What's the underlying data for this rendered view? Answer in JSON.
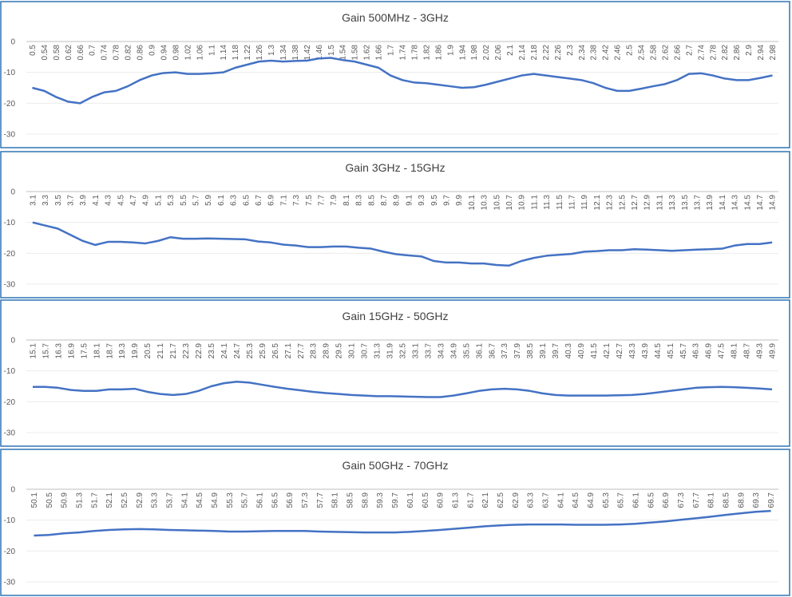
{
  "chart_data": [
    {
      "type": "line",
      "title": "Gain 500MHz - 3GHz",
      "categories": [
        "0.5",
        "0.54",
        "0.58",
        "0.62",
        "0.66",
        "0.7",
        "0.74",
        "0.78",
        "0.82",
        "0.86",
        "0.9",
        "0.94",
        "0.98",
        "1.02",
        "1.06",
        "1.1",
        "1.14",
        "1.18",
        "1.22",
        "1.26",
        "1.3",
        "1.34",
        "1.38",
        "1.42",
        "1.46",
        "1.5",
        "1.54",
        "1.58",
        "1.62",
        "1.66",
        "1.7",
        "1.74",
        "1.78",
        "1.82",
        "1.86",
        "1.9",
        "1.94",
        "1.98",
        "2.02",
        "2.06",
        "2.1",
        "2.14",
        "2.18",
        "2.22",
        "2.26",
        "2.3",
        "2.34",
        "2.38",
        "2.42",
        "2.46",
        "2.5",
        "2.54",
        "2.58",
        "2.62",
        "2.66",
        "2.7",
        "2.74",
        "2.78",
        "2.82",
        "2.86",
        "2.9",
        "2.94",
        "2.98"
      ],
      "values": [
        -15,
        -16,
        -18,
        -19.5,
        -20,
        -18,
        -16.5,
        -16,
        -14.5,
        -12.5,
        -11,
        -10.2,
        -10,
        -10.5,
        -10.5,
        -10.3,
        -10,
        -8.5,
        -7.5,
        -6.5,
        -6.2,
        -6.5,
        -6.3,
        -6.2,
        -5.5,
        -5.3,
        -6,
        -6.5,
        -7.5,
        -8.5,
        -11,
        -12.5,
        -13.3,
        -13.5,
        -14,
        -14.5,
        -15,
        -14.8,
        -14,
        -13,
        -12,
        -11,
        -10.5,
        -11,
        -11.5,
        -12,
        -12.5,
        -13.5,
        -15,
        -16,
        -16,
        -15.3,
        -14.5,
        -13.8,
        -12.5,
        -10.5,
        -10.3,
        -11,
        -12,
        -12.5,
        -12.5,
        -11.8,
        -11
      ],
      "color": "#4472c4",
      "ylim": [
        -30,
        0
      ],
      "yticks": [
        0,
        -10,
        -20,
        -30
      ],
      "grid": true
    },
    {
      "type": "line",
      "title": "Gain 3GHz - 15GHz",
      "categories": [
        "3.1",
        "3.3",
        "3.5",
        "3.7",
        "3.9",
        "4.1",
        "4.3",
        "4.5",
        "4.7",
        "4.9",
        "5.1",
        "5.3",
        "5.5",
        "5.7",
        "5.9",
        "6.1",
        "6.3",
        "6.5",
        "6.7",
        "6.9",
        "7.1",
        "7.3",
        "7.5",
        "7.7",
        "7.9",
        "8.1",
        "8.3",
        "8.5",
        "8.7",
        "8.9",
        "9.1",
        "9.3",
        "9.5",
        "9.7",
        "9.9",
        "10.1",
        "10.3",
        "10.5",
        "10.7",
        "10.9",
        "11.1",
        "11.3",
        "11.5",
        "11.7",
        "11.9",
        "12.1",
        "12.3",
        "12.5",
        "12.7",
        "12.9",
        "13.1",
        "13.3",
        "13.5",
        "13.7",
        "13.9",
        "14.1",
        "14.3",
        "14.5",
        "14.7",
        "14.9"
      ],
      "values": [
        -10,
        -11,
        -12,
        -14,
        -16,
        -17.3,
        -16.3,
        -16.3,
        -16.5,
        -16.8,
        -16,
        -14.8,
        -15.3,
        -15.3,
        -15.2,
        -15.3,
        -15.4,
        -15.5,
        -16.2,
        -16.5,
        -17.2,
        -17.5,
        -18,
        -18,
        -17.8,
        -17.8,
        -18.2,
        -18.5,
        -19.5,
        -20.3,
        -20.7,
        -21,
        -22.5,
        -23,
        -23,
        -23.3,
        -23.3,
        -23.8,
        -24,
        -22.5,
        -21.5,
        -20.8,
        -20.5,
        -20.2,
        -19.5,
        -19.3,
        -19,
        -19,
        -18.7,
        -18.8,
        -19,
        -19.2,
        -19,
        -18.8,
        -18.7,
        -18.5,
        -17.5,
        -17,
        -17,
        -16.5
      ],
      "color": "#4472c4",
      "ylim": [
        -30,
        0
      ],
      "yticks": [
        0,
        -10,
        -20,
        -30
      ],
      "grid": true
    },
    {
      "type": "line",
      "title": "Gain 15GHz - 50GHz",
      "categories": [
        "15.1",
        "15.7",
        "16.3",
        "16.9",
        "17.5",
        "18.1",
        "18.7",
        "19.3",
        "19.9",
        "20.5",
        "21.1",
        "21.7",
        "22.3",
        "22.9",
        "23.5",
        "24.1",
        "24.7",
        "25.3",
        "25.9",
        "26.5",
        "27.1",
        "27.7",
        "28.3",
        "28.9",
        "29.5",
        "30.1",
        "30.7",
        "31.3",
        "31.9",
        "32.5",
        "33.1",
        "33.7",
        "34.3",
        "34.9",
        "35.5",
        "36.1",
        "36.7",
        "37.3",
        "37.9",
        "38.5",
        "39.1",
        "39.7",
        "40.3",
        "40.9",
        "41.5",
        "42.1",
        "42.7",
        "43.3",
        "43.9",
        "44.5",
        "45.1",
        "45.7",
        "46.3",
        "46.9",
        "47.5",
        "48.1",
        "48.7",
        "49.3",
        "49.9"
      ],
      "values": [
        -15.2,
        -15.2,
        -15.5,
        -16.2,
        -16.5,
        -16.5,
        -16,
        -16,
        -15.8,
        -16.8,
        -17.5,
        -17.8,
        -17.5,
        -16.5,
        -15,
        -14,
        -13.5,
        -13.8,
        -14.5,
        -15.2,
        -15.8,
        -16.3,
        -16.8,
        -17.2,
        -17.5,
        -17.8,
        -18,
        -18.2,
        -18.2,
        -18.3,
        -18.4,
        -18.5,
        -18.5,
        -18,
        -17.3,
        -16.5,
        -16,
        -15.8,
        -16,
        -16.5,
        -17.3,
        -17.8,
        -18,
        -18,
        -18,
        -18,
        -17.9,
        -17.8,
        -17.5,
        -17,
        -16.5,
        -16,
        -15.5,
        -15.3,
        -15.2,
        -15.3,
        -15.5,
        -15.7,
        -16
      ],
      "color": "#4472c4",
      "ylim": [
        -30,
        0
      ],
      "yticks": [
        0,
        -10,
        -20,
        -30
      ],
      "grid": true
    },
    {
      "type": "line",
      "title": "Gain 50GHz - 70GHz",
      "categories": [
        "50.1",
        "50.5",
        "50.9",
        "51.3",
        "51.7",
        "52.1",
        "52.5",
        "52.9",
        "53.3",
        "53.7",
        "54.1",
        "54.5",
        "54.9",
        "55.3",
        "55.7",
        "56.1",
        "56.5",
        "56.9",
        "57.3",
        "57.7",
        "58.1",
        "58.5",
        "58.9",
        "59.3",
        "59.7",
        "60.1",
        "60.5",
        "60.9",
        "61.3",
        "61.7",
        "62.1",
        "62.5",
        "62.9",
        "63.3",
        "63.7",
        "64.1",
        "64.5",
        "64.9",
        "65.3",
        "65.7",
        "66.1",
        "66.5",
        "66.9",
        "67.3",
        "67.7",
        "68.1",
        "68.5",
        "68.9",
        "69.3",
        "69.7"
      ],
      "values": [
        -15,
        -14.8,
        -14.3,
        -14,
        -13.5,
        -13.2,
        -13,
        -12.9,
        -13,
        -13.2,
        -13.3,
        -13.4,
        -13.5,
        -13.7,
        -13.7,
        -13.6,
        -13.5,
        -13.5,
        -13.5,
        -13.7,
        -13.8,
        -13.9,
        -14,
        -14,
        -14,
        -13.8,
        -13.5,
        -13.2,
        -12.8,
        -12.4,
        -12,
        -11.7,
        -11.5,
        -11.4,
        -11.4,
        -11.4,
        -11.5,
        -11.5,
        -11.5,
        -11.4,
        -11.2,
        -10.8,
        -10.4,
        -9.9,
        -9.4,
        -8.9,
        -8.3,
        -7.8,
        -7.3,
        -7
      ],
      "color": "#4472c4",
      "ylim": [
        -30,
        0
      ],
      "yticks": [
        0,
        -10,
        -20,
        -30
      ],
      "grid": true
    }
  ]
}
